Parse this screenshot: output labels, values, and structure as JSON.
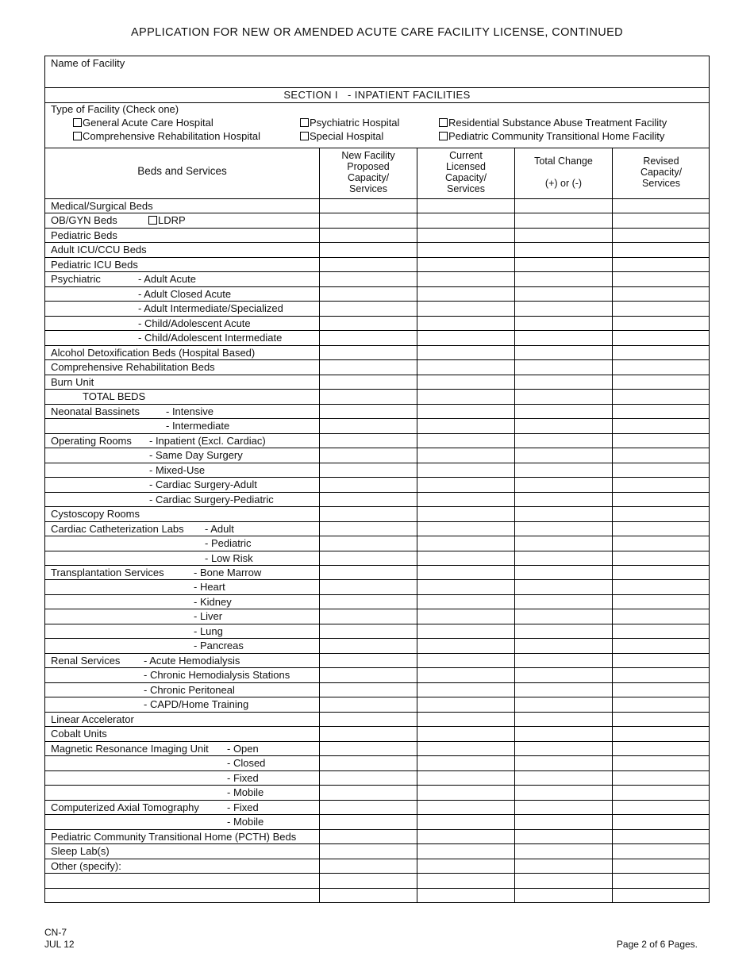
{
  "title": "APPLICATION FOR NEW OR AMENDED ACUTE CARE FACILITY LICENSE, CONTINUED",
  "name_of_facility_label": "Name of Facility",
  "name_of_facility_value": "",
  "section_title": "SECTION I   - INPATIENT FACILITIES",
  "type_label": "Type of Facility (Check one)",
  "facility_types": [
    {
      "label": "General Acute Care Hospital",
      "checked": false
    },
    {
      "label": "Psychiatric Hospital",
      "checked": false
    },
    {
      "label": "Residential Substance Abuse Treatment Facility",
      "checked": false
    },
    {
      "label": "Comprehensive Rehabilitation Hospital",
      "checked": false
    },
    {
      "label": "Special Hospital",
      "checked": false
    },
    {
      "label": "Pediatric Community Transitional Home Facility",
      "checked": false
    }
  ],
  "columns": {
    "beds": "Beds and Services",
    "new_facility": [
      "New Facility",
      "Proposed",
      "Capacity/",
      "Services"
    ],
    "current": [
      "Current",
      "Licensed",
      "Capacity/",
      "Services"
    ],
    "change": [
      "Total Change",
      "",
      "(+) or (-)"
    ],
    "revised": [
      "Revised",
      "Capacity/",
      "Services"
    ]
  },
  "ldrp_label": "LDRP",
  "rows": [
    {
      "label": "Medical/Surgical Beds",
      "sub": ""
    },
    {
      "label": "OB/GYN Beds",
      "sub": ""
    },
    {
      "label": "Pediatric Beds",
      "sub": ""
    },
    {
      "label": "Adult ICU/CCU Beds",
      "sub": ""
    },
    {
      "label": "Pediatric ICU Beds",
      "sub": ""
    },
    {
      "label": "Psychiatric",
      "sub": "- Adult Acute"
    },
    {
      "label": "",
      "sub": "- Adult Closed Acute"
    },
    {
      "label": "",
      "sub": "- Adult Intermediate/Specialized"
    },
    {
      "label": "",
      "sub": "- Child/Adolescent Acute"
    },
    {
      "label": "",
      "sub": "- Child/Adolescent Intermediate"
    },
    {
      "label": "Alcohol Detoxification Beds (Hospital Based)",
      "sub": ""
    },
    {
      "label": "Comprehensive Rehabilitation Beds",
      "sub": ""
    },
    {
      "label": "Burn Unit",
      "sub": ""
    },
    {
      "label": "",
      "sub": "TOTAL BEDS"
    },
    {
      "label": "Neonatal Bassinets",
      "sub": "- Intensive"
    },
    {
      "label": "",
      "sub": "- Intermediate"
    },
    {
      "label": "Operating Rooms",
      "sub": "- Inpatient (Excl. Cardiac)"
    },
    {
      "label": "",
      "sub": "- Same Day Surgery"
    },
    {
      "label": "",
      "sub": "- Mixed-Use"
    },
    {
      "label": "",
      "sub": "- Cardiac Surgery-Adult"
    },
    {
      "label": "",
      "sub": "- Cardiac Surgery-Pediatric"
    },
    {
      "label": "Cystoscopy Rooms",
      "sub": ""
    },
    {
      "label": "Cardiac Catheterization Labs",
      "sub": "- Adult"
    },
    {
      "label": "",
      "sub": "- Pediatric"
    },
    {
      "label": "",
      "sub": "- Low Risk"
    },
    {
      "label": "Transplantation Services",
      "sub": "- Bone Marrow"
    },
    {
      "label": "",
      "sub": "- Heart"
    },
    {
      "label": "",
      "sub": "- Kidney"
    },
    {
      "label": "",
      "sub": "- Liver"
    },
    {
      "label": "",
      "sub": "- Lung"
    },
    {
      "label": "",
      "sub": "- Pancreas"
    },
    {
      "label": "Renal Services",
      "sub": "- Acute Hemodialysis"
    },
    {
      "label": "",
      "sub": "- Chronic Hemodialysis Stations"
    },
    {
      "label": "",
      "sub": "- Chronic Peritoneal"
    },
    {
      "label": "",
      "sub": "- CAPD/Home Training"
    },
    {
      "label": "Linear Accelerator",
      "sub": ""
    },
    {
      "label": "Cobalt Units",
      "sub": ""
    },
    {
      "label": "Magnetic Resonance Imaging Unit",
      "sub": "- Open"
    },
    {
      "label": "",
      "sub": "- Closed"
    },
    {
      "label": "",
      "sub": "- Fixed"
    },
    {
      "label": "",
      "sub": "- Mobile"
    },
    {
      "label": "Computerized Axial Tomography",
      "sub": "- Fixed"
    },
    {
      "label": "",
      "sub": "- Mobile"
    },
    {
      "label": "Pediatric Community Transitional Home (PCTH) Beds",
      "sub": ""
    },
    {
      "label": "Sleep Lab(s)",
      "sub": ""
    },
    {
      "label": "Other (specify):",
      "sub": ""
    },
    {
      "label": "",
      "sub": ""
    },
    {
      "label": "",
      "sub": ""
    }
  ],
  "footer": {
    "form_id": "CN-7",
    "date": "JUL 12",
    "page": "Page 2 of 6 Pages."
  }
}
